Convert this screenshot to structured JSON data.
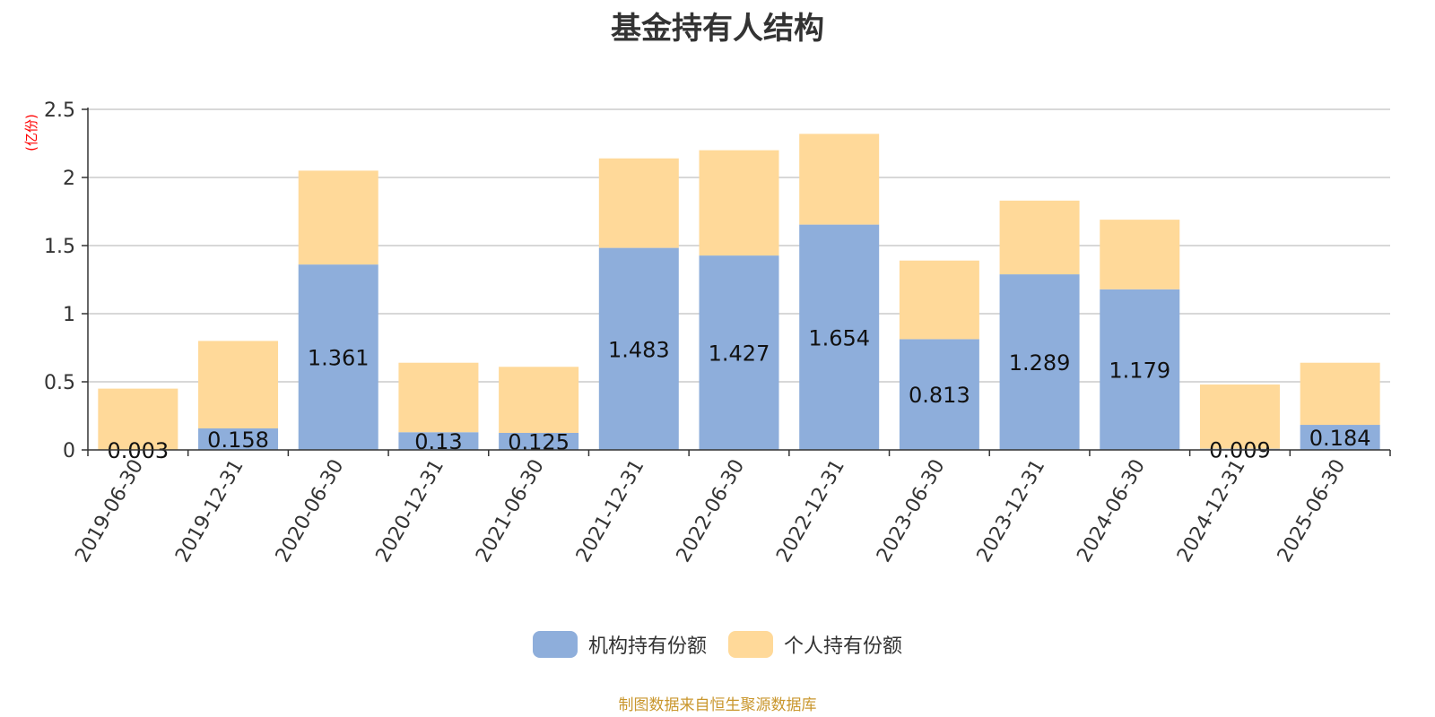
{
  "chart_data": {
    "type": "bar",
    "stacked": true,
    "title": "基金持有人结构",
    "ylabel": "(亿份)",
    "ylim": [
      0,
      2.5
    ],
    "yticks": [
      "0",
      "0.5",
      "1",
      "1.5",
      "2",
      "2.5"
    ],
    "grid": true,
    "legend_position": "bottom",
    "categories": [
      "2019-06-30",
      "2019-12-31",
      "2020-06-30",
      "2020-12-31",
      "2021-06-30",
      "2021-12-31",
      "2022-06-30",
      "2022-12-31",
      "2023-06-30",
      "2023-12-31",
      "2024-06-30",
      "2024-12-31",
      "2025-06-30"
    ],
    "series": [
      {
        "name": "机构持有份额",
        "color": "#8eaedb",
        "values": [
          0.003,
          0.158,
          1.361,
          0.13,
          0.125,
          1.483,
          1.427,
          1.654,
          0.813,
          1.289,
          1.179,
          0.009,
          0.184
        ],
        "labels": [
          "0.003",
          "0.158",
          "1.361",
          "0.13",
          "0.125",
          "1.483",
          "1.427",
          "1.654",
          "0.813",
          "1.289",
          "1.179",
          "0.009",
          "0.184"
        ]
      },
      {
        "name": "个人持有份额",
        "color": "#ffd999",
        "values": [
          0.447,
          0.642,
          0.689,
          0.51,
          0.485,
          0.657,
          0.773,
          0.666,
          0.577,
          0.541,
          0.511,
          0.471,
          0.456
        ]
      }
    ],
    "ylabel_color": "#ff0000",
    "source_note": "制图数据来自恒生聚源数据库",
    "source_color": "#c9962c"
  }
}
